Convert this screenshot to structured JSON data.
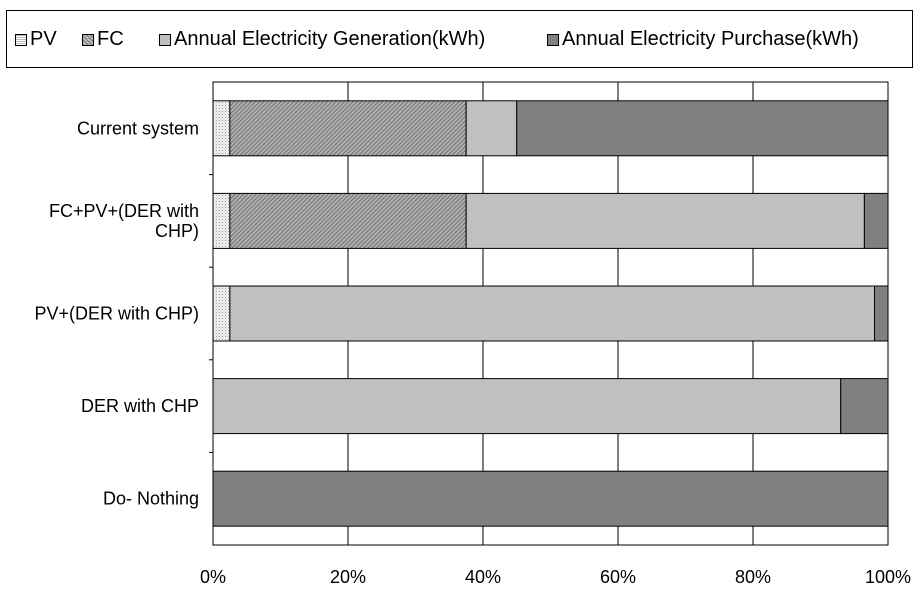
{
  "chart_data": {
    "type": "bar",
    "orientation": "horizontal",
    "stacked": "percent",
    "categories": [
      "Current system",
      "FC+PV+(DER with CHP)",
      "PV+(DER with CHP)",
      "DER with CHP",
      "Do- Nothing"
    ],
    "category_lines": [
      [
        "Current system"
      ],
      [
        "FC+PV+(DER with",
        "CHP)"
      ],
      [
        "PV+(DER with CHP)"
      ],
      [
        "DER with CHP"
      ],
      [
        "Do- Nothing"
      ]
    ],
    "series": [
      {
        "name": "PV",
        "color": "#e8e8e8",
        "pattern": "dots",
        "values": [
          2.5,
          2.5,
          2.5,
          0,
          0
        ]
      },
      {
        "name": "FC",
        "color": "#a0a0a0",
        "pattern": "diagonal",
        "values": [
          35,
          35,
          0,
          0,
          0
        ]
      },
      {
        "name": "Annual Electricity Generation(kWh)",
        "color": "#c0c0c0",
        "pattern": "solid",
        "values": [
          7.5,
          59,
          95.5,
          93,
          0
        ]
      },
      {
        "name": "Annual Electricity Purchase(kWh)",
        "color": "#808080",
        "pattern": "solid",
        "values": [
          55,
          3.5,
          2,
          7,
          100
        ]
      }
    ],
    "xlim": [
      0,
      100
    ],
    "x_ticks": [
      "0%",
      "20%",
      "40%",
      "60%",
      "80%",
      "100%"
    ],
    "grid": true,
    "legend_position": "top"
  }
}
